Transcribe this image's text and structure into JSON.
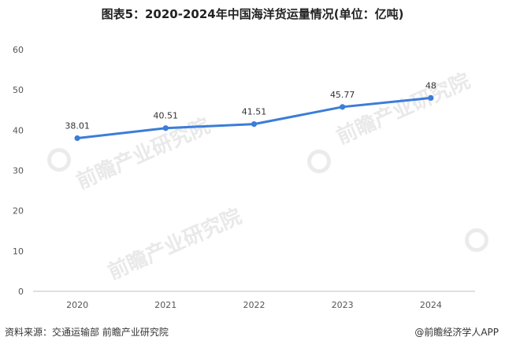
{
  "chart_data": {
    "type": "line",
    "title": "图表5：2020-2024年中国海洋货运量情况(单位：亿吨)",
    "categories": [
      "2020",
      "2021",
      "2022",
      "2023",
      "2024"
    ],
    "series": [
      {
        "values": [
          38.01,
          40.51,
          41.51,
          45.77,
          48
        ]
      }
    ],
    "data_labels": [
      "38.01",
      "40.51",
      "41.51",
      "45.77",
      "48"
    ],
    "ylim": [
      0,
      60
    ],
    "yticks": [
      "0",
      "10",
      "20",
      "30",
      "40",
      "50",
      "60"
    ],
    "grid": false,
    "legend": "none",
    "line_color": "#3b7dd8",
    "axis_color": "#bfbfbf"
  },
  "footer": {
    "source": "资料来源：交通运输部 前瞻产业研究院",
    "brand": "@前瞻经济学人APP"
  },
  "watermark": {
    "text": "前瞻产业研究院"
  }
}
